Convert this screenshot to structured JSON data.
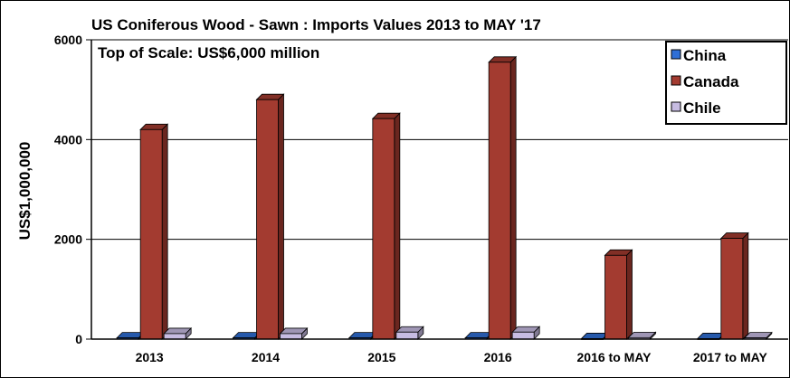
{
  "chart_data": {
    "type": "bar",
    "title": "US Coniferous Wood - Sawn :  Imports Values 2013 to MAY '17",
    "subtitle": "Top of Scale: US$6,000 million",
    "ylabel": "US$1,000,000",
    "xlabel": "",
    "ylim": [
      0,
      6000
    ],
    "yticks": [
      "0",
      "2000",
      "4000",
      "6000"
    ],
    "categories": [
      "2013",
      "2014",
      "2015",
      "2016",
      "2016 to MAY",
      "2017 to MAY"
    ],
    "series": [
      {
        "name": "China",
        "color": "#2f6fd6",
        "values": [
          25,
          25,
          25,
          25,
          10,
          10
        ]
      },
      {
        "name": "Canada",
        "color": "#a33b30",
        "values": [
          4200,
          4800,
          4420,
          5550,
          1680,
          2020
        ]
      },
      {
        "name": "Chile",
        "color": "#c7bce2",
        "values": [
          110,
          110,
          140,
          140,
          30,
          25
        ]
      }
    ],
    "grid": true,
    "legend_position": "top-right"
  }
}
